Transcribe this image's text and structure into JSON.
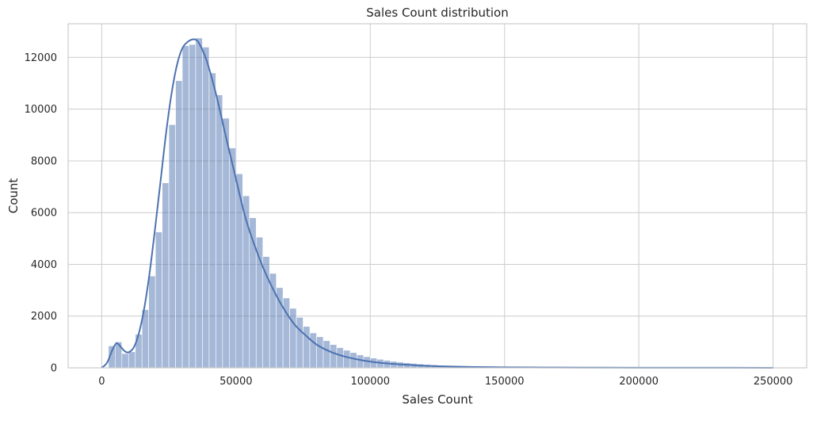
{
  "chart_data": {
    "type": "histogram",
    "title": "Sales Count distribution",
    "xlabel": "Sales Count",
    "ylabel": "Count",
    "xlim": [
      -12500,
      262500
    ],
    "ylim": [
      0,
      13300
    ],
    "xticks": [
      0,
      50000,
      100000,
      150000,
      200000,
      250000
    ],
    "xtick_labels": [
      "0",
      "50000",
      "100000",
      "150000",
      "200000",
      "250000"
    ],
    "yticks": [
      0,
      2000,
      4000,
      6000,
      8000,
      10000,
      12000
    ],
    "ytick_labels": [
      "0",
      "2000",
      "4000",
      "6000",
      "8000",
      "10000",
      "12000"
    ],
    "grid": true,
    "bin_start": 2500,
    "bin_width": 2500,
    "counts": [
      850,
      1000,
      550,
      620,
      1300,
      2250,
      3550,
      5250,
      7150,
      9400,
      11100,
      12450,
      12500,
      12750,
      12400,
      11400,
      10550,
      9650,
      8500,
      7500,
      6650,
      5800,
      5050,
      4300,
      3650,
      3100,
      2700,
      2300,
      1950,
      1600,
      1350,
      1200,
      1050,
      900,
      780,
      680,
      590,
      500,
      430,
      380,
      330,
      290,
      250,
      220,
      195,
      170,
      150,
      130,
      115,
      100,
      88,
      77,
      68,
      60,
      52,
      46,
      40,
      35,
      31,
      27,
      24,
      21,
      18,
      16,
      14,
      12,
      11,
      10,
      9,
      8,
      7,
      6,
      6,
      5,
      5,
      4,
      4,
      3,
      3,
      3,
      2,
      2,
      2,
      2,
      2,
      1,
      1,
      1,
      1,
      1,
      1,
      1,
      1,
      1,
      1,
      1,
      1,
      1,
      1,
      1
    ],
    "kde_x": [
      0,
      2000,
      4000,
      5500,
      7000,
      8500,
      10000,
      12000,
      14000,
      16000,
      18000,
      20000,
      22000,
      24000,
      26000,
      28000,
      30000,
      32000,
      34000,
      35500,
      37000,
      39000,
      41000,
      43000,
      45000,
      47000,
      50000,
      53000,
      56000,
      60000,
      64000,
      68000,
      72000,
      76000,
      80000,
      85000,
      90000,
      95000,
      100000,
      105000,
      110000,
      115000,
      120000,
      130000,
      140000,
      150000,
      165000,
      180000,
      200000,
      225000,
      250000
    ],
    "kde_y": [
      0,
      200,
      700,
      950,
      820,
      650,
      600,
      800,
      1400,
      2400,
      3800,
      5500,
      7300,
      9100,
      10600,
      11700,
      12350,
      12600,
      12700,
      12650,
      12400,
      11900,
      11200,
      10400,
      9500,
      8600,
      7300,
      6000,
      5000,
      3900,
      3000,
      2250,
      1650,
      1250,
      900,
      630,
      450,
      330,
      240,
      180,
      140,
      110,
      80,
      50,
      30,
      20,
      12,
      8,
      5,
      3,
      0
    ],
    "bar_color": "#4c72b0",
    "bar_alpha": 0.5,
    "kde_color": "#4c72b0"
  }
}
